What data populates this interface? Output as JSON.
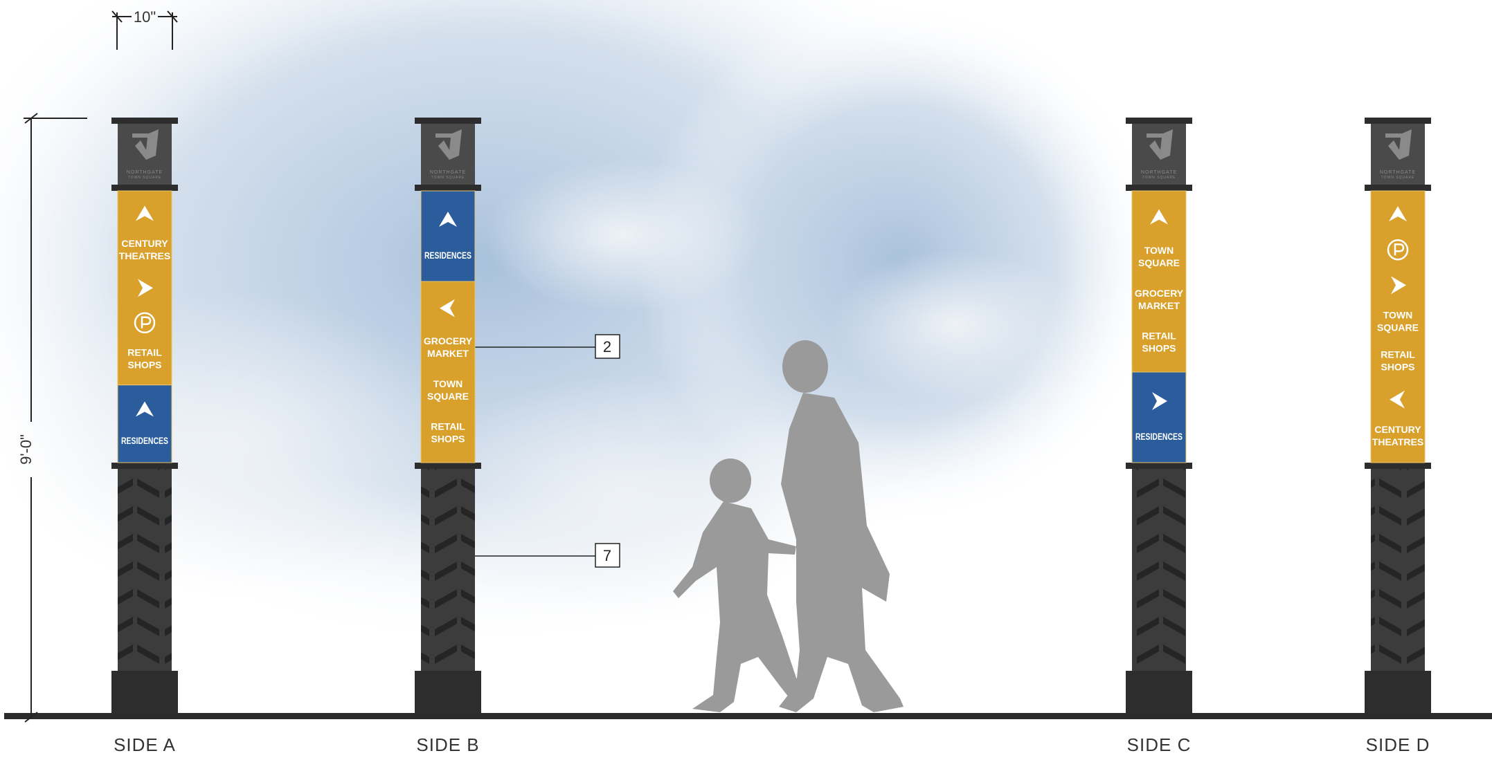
{
  "dimensions": {
    "width": "10\"",
    "height": "9'-0\""
  },
  "logo": {
    "name": "NORTHGATE",
    "tagline": "TOWN SQUARE"
  },
  "callouts": [
    "2",
    "7"
  ],
  "sides": [
    {
      "label": "SIDE A",
      "panels": [
        {
          "color": "#d9a12c",
          "items": [
            {
              "icon": "up"
            },
            {
              "text": [
                "CENTURY",
                "THEATRES"
              ]
            },
            {
              "icon": "right"
            },
            {
              "icon": "parking"
            },
            {
              "text": [
                "RETAIL",
                "SHOPS"
              ]
            }
          ]
        },
        {
          "color": "#2b5d9c",
          "items": [
            {
              "icon": "up"
            },
            {
              "text": [
                "RESIDENCES"
              ]
            }
          ]
        }
      ]
    },
    {
      "label": "SIDE B",
      "panels": [
        {
          "color": "#2b5d9c",
          "items": [
            {
              "icon": "up"
            },
            {
              "text": [
                "RESIDENCES"
              ]
            }
          ]
        },
        {
          "color": "#d9a12c",
          "items": [
            {
              "icon": "left"
            },
            {
              "text": [
                "GROCERY",
                "MARKET"
              ]
            },
            {
              "text": [
                "TOWN",
                "SQUARE"
              ]
            },
            {
              "text": [
                "RETAIL",
                "SHOPS"
              ]
            }
          ]
        }
      ]
    },
    {
      "label": "SIDE C",
      "panels": [
        {
          "color": "#d9a12c",
          "items": [
            {
              "icon": "up"
            },
            {
              "text": [
                "TOWN",
                "SQUARE"
              ]
            },
            {
              "text": [
                "GROCERY",
                "MARKET"
              ]
            },
            {
              "text": [
                "RETAIL",
                "SHOPS"
              ]
            }
          ]
        },
        {
          "color": "#2b5d9c",
          "items": [
            {
              "icon": "right"
            },
            {
              "text": [
                "RESIDENCES"
              ]
            }
          ]
        }
      ]
    },
    {
      "label": "SIDE D",
      "panels": [
        {
          "color": "#d9a12c",
          "items": [
            {
              "icon": "up"
            },
            {
              "icon": "parking"
            },
            {
              "icon": "right"
            },
            {
              "text": [
                "TOWN",
                "SQUARE"
              ]
            },
            {
              "text": [
                "RETAIL",
                "SHOPS"
              ]
            },
            {
              "icon": "left"
            },
            {
              "text": [
                "CENTURY",
                "THEATRES"
              ]
            }
          ]
        }
      ]
    }
  ]
}
